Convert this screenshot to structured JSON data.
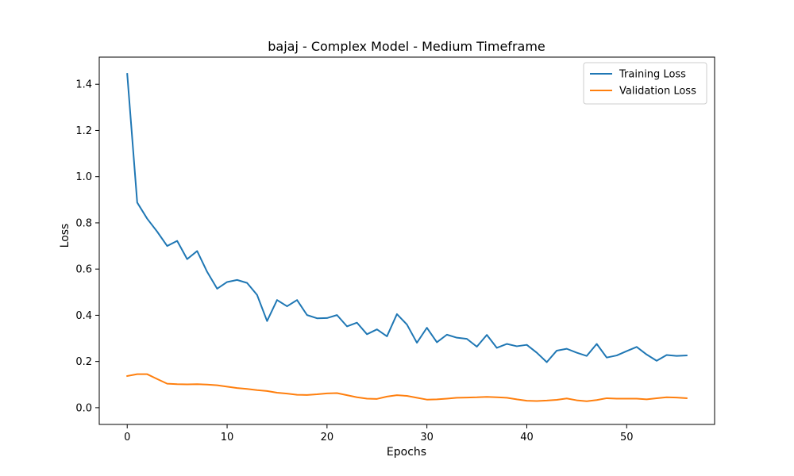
{
  "chart_data": {
    "type": "line",
    "title": "bajaj - Complex Model - Medium Timeframe",
    "xlabel": "Epochs",
    "ylabel": "Loss",
    "xlim": [
      -2.8,
      58.8
    ],
    "ylim": [
      -0.0725,
      1.5175
    ],
    "xticks": [
      0,
      10,
      20,
      30,
      40,
      50
    ],
    "yticks": [
      0.0,
      0.2,
      0.4,
      0.6,
      0.8,
      1.0,
      1.2,
      1.4
    ],
    "xtick_labels": [
      "0",
      "10",
      "20",
      "30",
      "40",
      "50"
    ],
    "ytick_labels": [
      "0.0",
      "0.2",
      "0.4",
      "0.6",
      "0.8",
      "1.0",
      "1.2",
      "1.4"
    ],
    "grid": false,
    "legend_position": "top-right",
    "x": [
      0,
      1,
      2,
      3,
      4,
      5,
      6,
      7,
      8,
      9,
      10,
      11,
      12,
      13,
      14,
      15,
      16,
      17,
      18,
      19,
      20,
      21,
      22,
      23,
      24,
      25,
      26,
      27,
      28,
      29,
      30,
      31,
      32,
      33,
      34,
      35,
      36,
      37,
      38,
      39,
      40,
      41,
      42,
      43,
      44,
      45,
      46,
      47,
      48,
      49,
      50,
      51,
      52,
      53,
      54,
      55,
      56
    ],
    "series": [
      {
        "name": "Training Loss",
        "color": "#1f77b4",
        "values": [
          1.445,
          0.888,
          0.818,
          0.762,
          0.7,
          0.722,
          0.643,
          0.678,
          0.588,
          0.515,
          0.544,
          0.553,
          0.54,
          0.488,
          0.375,
          0.466,
          0.439,
          0.466,
          0.401,
          0.387,
          0.388,
          0.401,
          0.352,
          0.368,
          0.318,
          0.339,
          0.309,
          0.405,
          0.36,
          0.281,
          0.346,
          0.283,
          0.316,
          0.303,
          0.298,
          0.264,
          0.315,
          0.259,
          0.276,
          0.266,
          0.272,
          0.238,
          0.197,
          0.247,
          0.255,
          0.238,
          0.224,
          0.276,
          0.217,
          0.226,
          0.245,
          0.263,
          0.23,
          0.203,
          0.228,
          0.224,
          0.226
        ]
      },
      {
        "name": "Validation Loss",
        "color": "#ff7f0e",
        "values": [
          0.137,
          0.145,
          0.145,
          0.124,
          0.104,
          0.102,
          0.101,
          0.102,
          0.1,
          0.097,
          0.091,
          0.085,
          0.081,
          0.076,
          0.072,
          0.065,
          0.061,
          0.056,
          0.055,
          0.058,
          0.062,
          0.063,
          0.054,
          0.045,
          0.039,
          0.038,
          0.048,
          0.054,
          0.051,
          0.043,
          0.035,
          0.036,
          0.039,
          0.043,
          0.044,
          0.045,
          0.047,
          0.045,
          0.043,
          0.036,
          0.03,
          0.029,
          0.031,
          0.034,
          0.04,
          0.032,
          0.028,
          0.033,
          0.041,
          0.039,
          0.039,
          0.039,
          0.036,
          0.041,
          0.045,
          0.044,
          0.041
        ]
      }
    ]
  }
}
